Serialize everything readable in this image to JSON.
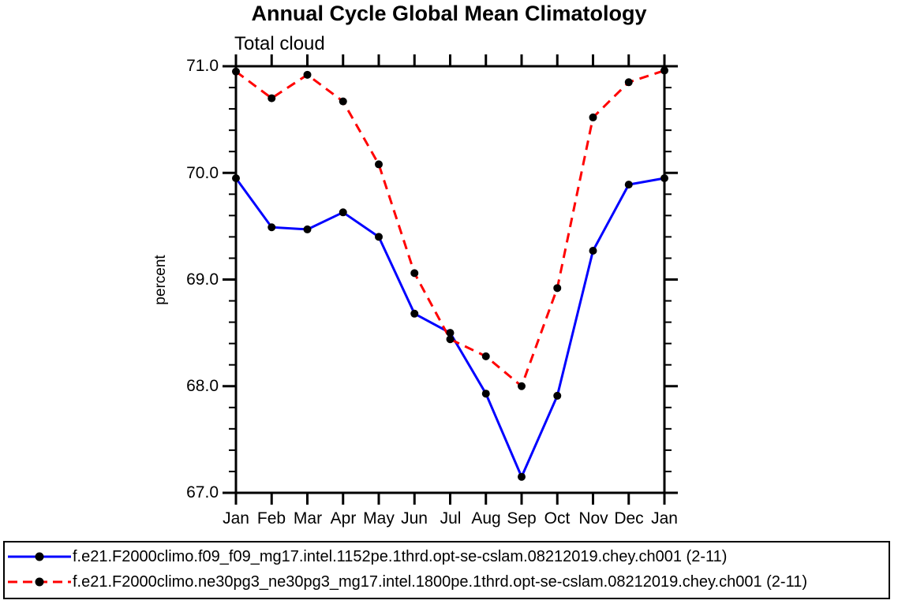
{
  "chart_data": {
    "type": "line",
    "title": "Annual Cycle Global Mean Climatology",
    "subtitle": "Total cloud",
    "ylabel": "percent",
    "x_labels": [
      "Jan",
      "Feb",
      "Mar",
      "Apr",
      "May",
      "Jun",
      "Jul",
      "Aug",
      "Sep",
      "Oct",
      "Nov",
      "Dec",
      "Jan"
    ],
    "ylim": [
      67.0,
      71.0
    ],
    "y_minor_step": 0.2,
    "ytick_labels_top_down": [
      "71.0",
      "70.0",
      "69.0",
      "68.0",
      "67.0"
    ],
    "axis_color": "#000000",
    "grid": "off",
    "legend_position": "bottom",
    "series": [
      {
        "name": "f.e21.F2000climo.f09_f09_mg17.intel.1152pe.1thrd.opt-se-cslam.08212019.chey.ch001 (2-11)",
        "color": "#0000ff",
        "style": "solid",
        "marker": "filled-circle",
        "marker_color": "#000000",
        "values": [
          69.95,
          69.49,
          69.47,
          69.63,
          69.4,
          68.68,
          68.5,
          67.93,
          67.15,
          67.91,
          69.27,
          69.89,
          69.95
        ]
      },
      {
        "name": "f.e21.F2000climo.ne30pg3_ne30pg3_mg17.intel.1800pe.1thrd.opt-se-cslam.08212019.chey.ch001 (2-11)",
        "color": "#ff0000",
        "style": "dashed",
        "marker": "filled-circle",
        "marker_color": "#000000",
        "values": [
          70.95,
          70.7,
          70.92,
          70.67,
          70.08,
          69.06,
          68.44,
          68.28,
          68.0,
          68.92,
          70.52,
          70.85,
          70.96
        ]
      }
    ]
  }
}
